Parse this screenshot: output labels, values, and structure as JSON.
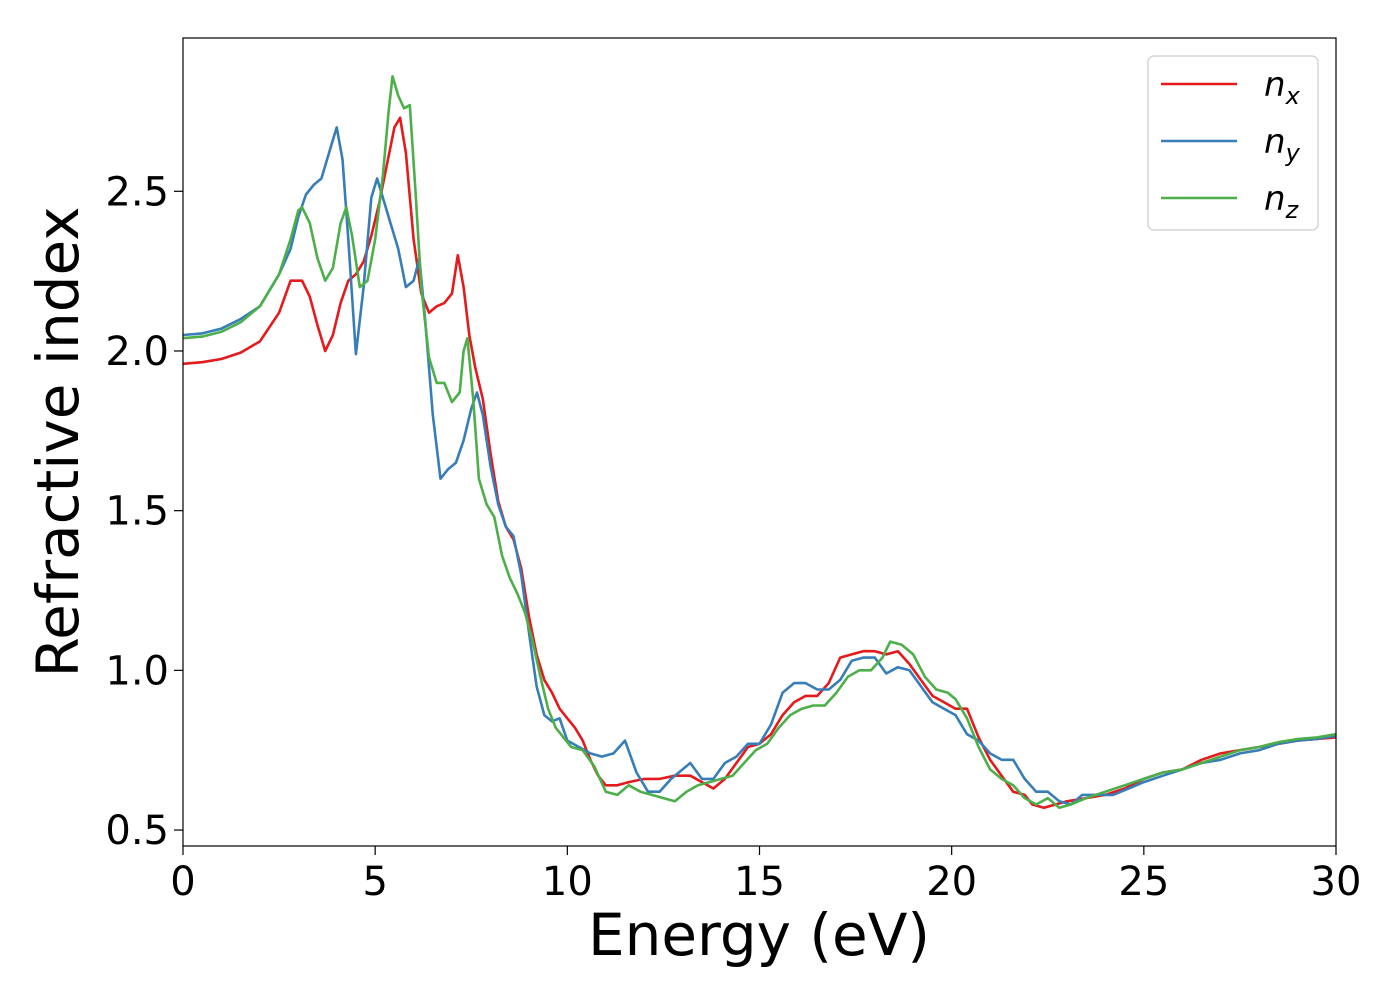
{
  "chart_data": {
    "type": "line",
    "title": "",
    "xlabel": "Energy (eV)",
    "ylabel": "Refractive index",
    "xlim": [
      0,
      30
    ],
    "ylim": [
      0.45,
      2.98
    ],
    "xticks": [
      0,
      5,
      10,
      15,
      20,
      25,
      30
    ],
    "xtick_labels": [
      "0",
      "5",
      "10",
      "15",
      "20",
      "25",
      "30"
    ],
    "yticks": [
      0.5,
      1.0,
      1.5,
      2.0,
      2.5
    ],
    "ytick_labels": [
      "0.5",
      "1.0",
      "1.5",
      "2.0",
      "2.5"
    ],
    "grid": false,
    "legend_position": "top-right",
    "legend": [
      {
        "base": "n",
        "sub": "x",
        "color": "#e41a1c"
      },
      {
        "base": "n",
        "sub": "y",
        "color": "#377eb8"
      },
      {
        "base": "n",
        "sub": "z",
        "color": "#4daf4a"
      }
    ],
    "series": [
      {
        "name": "n_x",
        "color": "#e41a1c",
        "points": [
          [
            0,
            1.96
          ],
          [
            0.5,
            1.965
          ],
          [
            1.0,
            1.975
          ],
          [
            1.5,
            1.995
          ],
          [
            2.0,
            2.03
          ],
          [
            2.5,
            2.12
          ],
          [
            2.8,
            2.22
          ],
          [
            3.1,
            2.22
          ],
          [
            3.3,
            2.17
          ],
          [
            3.5,
            2.08
          ],
          [
            3.7,
            2.0
          ],
          [
            3.9,
            2.05
          ],
          [
            4.1,
            2.15
          ],
          [
            4.3,
            2.22
          ],
          [
            4.5,
            2.24
          ],
          [
            4.7,
            2.28
          ],
          [
            4.9,
            2.36
          ],
          [
            5.1,
            2.46
          ],
          [
            5.3,
            2.58
          ],
          [
            5.5,
            2.7
          ],
          [
            5.65,
            2.73
          ],
          [
            5.8,
            2.62
          ],
          [
            6.0,
            2.35
          ],
          [
            6.2,
            2.18
          ],
          [
            6.4,
            2.12
          ],
          [
            6.6,
            2.14
          ],
          [
            6.8,
            2.15
          ],
          [
            7.0,
            2.18
          ],
          [
            7.15,
            2.3
          ],
          [
            7.3,
            2.2
          ],
          [
            7.45,
            2.05
          ],
          [
            7.6,
            1.95
          ],
          [
            7.8,
            1.85
          ],
          [
            8.0,
            1.68
          ],
          [
            8.2,
            1.53
          ],
          [
            8.4,
            1.45
          ],
          [
            8.6,
            1.41
          ],
          [
            8.8,
            1.32
          ],
          [
            9.0,
            1.17
          ],
          [
            9.2,
            1.05
          ],
          [
            9.4,
            0.97
          ],
          [
            9.6,
            0.93
          ],
          [
            9.8,
            0.88
          ],
          [
            10.0,
            0.85
          ],
          [
            10.2,
            0.82
          ],
          [
            10.4,
            0.78
          ],
          [
            10.6,
            0.72
          ],
          [
            10.8,
            0.67
          ],
          [
            11.0,
            0.64
          ],
          [
            11.3,
            0.64
          ],
          [
            11.6,
            0.65
          ],
          [
            12.0,
            0.66
          ],
          [
            12.4,
            0.66
          ],
          [
            12.8,
            0.67
          ],
          [
            13.2,
            0.67
          ],
          [
            13.5,
            0.65
          ],
          [
            13.8,
            0.63
          ],
          [
            14.1,
            0.66
          ],
          [
            14.4,
            0.71
          ],
          [
            14.7,
            0.76
          ],
          [
            15.0,
            0.77
          ],
          [
            15.3,
            0.8
          ],
          [
            15.6,
            0.86
          ],
          [
            15.9,
            0.9
          ],
          [
            16.2,
            0.92
          ],
          [
            16.5,
            0.92
          ],
          [
            16.8,
            0.96
          ],
          [
            17.1,
            1.04
          ],
          [
            17.4,
            1.05
          ],
          [
            17.7,
            1.06
          ],
          [
            18.0,
            1.06
          ],
          [
            18.3,
            1.05
          ],
          [
            18.6,
            1.06
          ],
          [
            18.9,
            1.02
          ],
          [
            19.2,
            0.97
          ],
          [
            19.5,
            0.92
          ],
          [
            19.8,
            0.9
          ],
          [
            20.1,
            0.88
          ],
          [
            20.4,
            0.88
          ],
          [
            20.7,
            0.79
          ],
          [
            21.0,
            0.72
          ],
          [
            21.3,
            0.67
          ],
          [
            21.6,
            0.62
          ],
          [
            21.9,
            0.61
          ],
          [
            22.1,
            0.58
          ],
          [
            22.4,
            0.57
          ],
          [
            22.7,
            0.58
          ],
          [
            23.0,
            0.59
          ],
          [
            23.5,
            0.6
          ],
          [
            24.0,
            0.61
          ],
          [
            24.5,
            0.63
          ],
          [
            25.0,
            0.66
          ],
          [
            25.5,
            0.68
          ],
          [
            26.0,
            0.69
          ],
          [
            26.5,
            0.72
          ],
          [
            27.0,
            0.74
          ],
          [
            27.5,
            0.75
          ],
          [
            28.0,
            0.76
          ],
          [
            28.5,
            0.77
          ],
          [
            29.0,
            0.78
          ],
          [
            29.5,
            0.785
          ],
          [
            30.0,
            0.79
          ]
        ]
      },
      {
        "name": "n_y",
        "color": "#377eb8",
        "points": [
          [
            0,
            2.05
          ],
          [
            0.5,
            2.055
          ],
          [
            1.0,
            2.07
          ],
          [
            1.5,
            2.1
          ],
          [
            2.0,
            2.14
          ],
          [
            2.5,
            2.24
          ],
          [
            2.8,
            2.32
          ],
          [
            3.0,
            2.42
          ],
          [
            3.2,
            2.49
          ],
          [
            3.4,
            2.52
          ],
          [
            3.6,
            2.54
          ],
          [
            3.8,
            2.62
          ],
          [
            4.0,
            2.7
          ],
          [
            4.15,
            2.6
          ],
          [
            4.3,
            2.35
          ],
          [
            4.5,
            1.99
          ],
          [
            4.7,
            2.2
          ],
          [
            4.9,
            2.48
          ],
          [
            5.05,
            2.54
          ],
          [
            5.2,
            2.48
          ],
          [
            5.4,
            2.4
          ],
          [
            5.6,
            2.32
          ],
          [
            5.8,
            2.2
          ],
          [
            6.0,
            2.22
          ],
          [
            6.15,
            2.29
          ],
          [
            6.3,
            2.1
          ],
          [
            6.5,
            1.8
          ],
          [
            6.7,
            1.6
          ],
          [
            6.9,
            1.63
          ],
          [
            7.1,
            1.65
          ],
          [
            7.3,
            1.72
          ],
          [
            7.5,
            1.82
          ],
          [
            7.65,
            1.87
          ],
          [
            7.8,
            1.8
          ],
          [
            8.0,
            1.64
          ],
          [
            8.2,
            1.52
          ],
          [
            8.4,
            1.45
          ],
          [
            8.6,
            1.42
          ],
          [
            8.8,
            1.3
          ],
          [
            9.0,
            1.12
          ],
          [
            9.2,
            0.95
          ],
          [
            9.4,
            0.86
          ],
          [
            9.6,
            0.84
          ],
          [
            9.8,
            0.85
          ],
          [
            10.0,
            0.78
          ],
          [
            10.3,
            0.76
          ],
          [
            10.6,
            0.74
          ],
          [
            10.9,
            0.73
          ],
          [
            11.2,
            0.74
          ],
          [
            11.5,
            0.78
          ],
          [
            11.8,
            0.68
          ],
          [
            12.1,
            0.62
          ],
          [
            12.4,
            0.62
          ],
          [
            12.7,
            0.66
          ],
          [
            13.0,
            0.69
          ],
          [
            13.2,
            0.71
          ],
          [
            13.5,
            0.66
          ],
          [
            13.8,
            0.66
          ],
          [
            14.1,
            0.71
          ],
          [
            14.4,
            0.73
          ],
          [
            14.7,
            0.77
          ],
          [
            15.0,
            0.77
          ],
          [
            15.3,
            0.83
          ],
          [
            15.6,
            0.93
          ],
          [
            15.9,
            0.96
          ],
          [
            16.2,
            0.96
          ],
          [
            16.5,
            0.94
          ],
          [
            16.8,
            0.94
          ],
          [
            17.1,
            0.97
          ],
          [
            17.4,
            1.03
          ],
          [
            17.7,
            1.04
          ],
          [
            18.0,
            1.04
          ],
          [
            18.3,
            0.99
          ],
          [
            18.6,
            1.01
          ],
          [
            18.9,
            1.0
          ],
          [
            19.2,
            0.95
          ],
          [
            19.5,
            0.9
          ],
          [
            19.8,
            0.88
          ],
          [
            20.1,
            0.86
          ],
          [
            20.4,
            0.8
          ],
          [
            20.7,
            0.78
          ],
          [
            21.0,
            0.74
          ],
          [
            21.3,
            0.72
          ],
          [
            21.6,
            0.72
          ],
          [
            21.9,
            0.66
          ],
          [
            22.2,
            0.62
          ],
          [
            22.5,
            0.62
          ],
          [
            22.8,
            0.59
          ],
          [
            23.1,
            0.58
          ],
          [
            23.4,
            0.61
          ],
          [
            23.8,
            0.61
          ],
          [
            24.2,
            0.61
          ],
          [
            24.6,
            0.63
          ],
          [
            25.0,
            0.65
          ],
          [
            25.5,
            0.67
          ],
          [
            26.0,
            0.69
          ],
          [
            26.5,
            0.71
          ],
          [
            27.0,
            0.72
          ],
          [
            27.5,
            0.74
          ],
          [
            28.0,
            0.75
          ],
          [
            28.5,
            0.77
          ],
          [
            29.0,
            0.78
          ],
          [
            29.5,
            0.785
          ],
          [
            30.0,
            0.795
          ]
        ]
      },
      {
        "name": "n_z",
        "color": "#4daf4a",
        "points": [
          [
            0,
            2.04
          ],
          [
            0.5,
            2.045
          ],
          [
            1.0,
            2.06
          ],
          [
            1.5,
            2.09
          ],
          [
            2.0,
            2.14
          ],
          [
            2.5,
            2.24
          ],
          [
            2.8,
            2.35
          ],
          [
            3.0,
            2.44
          ],
          [
            3.1,
            2.45
          ],
          [
            3.3,
            2.4
          ],
          [
            3.5,
            2.29
          ],
          [
            3.7,
            2.22
          ],
          [
            3.9,
            2.26
          ],
          [
            4.1,
            2.4
          ],
          [
            4.25,
            2.45
          ],
          [
            4.4,
            2.36
          ],
          [
            4.6,
            2.2
          ],
          [
            4.8,
            2.22
          ],
          [
            5.0,
            2.35
          ],
          [
            5.2,
            2.55
          ],
          [
            5.35,
            2.75
          ],
          [
            5.45,
            2.86
          ],
          [
            5.6,
            2.8
          ],
          [
            5.75,
            2.76
          ],
          [
            5.9,
            2.77
          ],
          [
            6.05,
            2.5
          ],
          [
            6.2,
            2.2
          ],
          [
            6.4,
            1.98
          ],
          [
            6.6,
            1.9
          ],
          [
            6.8,
            1.9
          ],
          [
            7.0,
            1.84
          ],
          [
            7.2,
            1.87
          ],
          [
            7.3,
            2.0
          ],
          [
            7.4,
            2.04
          ],
          [
            7.55,
            1.85
          ],
          [
            7.7,
            1.6
          ],
          [
            7.9,
            1.52
          ],
          [
            8.1,
            1.48
          ],
          [
            8.3,
            1.36
          ],
          [
            8.5,
            1.29
          ],
          [
            8.7,
            1.24
          ],
          [
            8.9,
            1.18
          ],
          [
            9.1,
            1.09
          ],
          [
            9.3,
            0.98
          ],
          [
            9.5,
            0.88
          ],
          [
            9.7,
            0.82
          ],
          [
            9.9,
            0.79
          ],
          [
            10.1,
            0.76
          ],
          [
            10.4,
            0.75
          ],
          [
            10.7,
            0.7
          ],
          [
            11.0,
            0.62
          ],
          [
            11.3,
            0.61
          ],
          [
            11.6,
            0.64
          ],
          [
            11.9,
            0.62
          ],
          [
            12.2,
            0.61
          ],
          [
            12.5,
            0.6
          ],
          [
            12.8,
            0.59
          ],
          [
            13.1,
            0.62
          ],
          [
            13.4,
            0.64
          ],
          [
            13.7,
            0.65
          ],
          [
            14.0,
            0.66
          ],
          [
            14.3,
            0.67
          ],
          [
            14.6,
            0.71
          ],
          [
            14.9,
            0.75
          ],
          [
            15.2,
            0.77
          ],
          [
            15.5,
            0.82
          ],
          [
            15.8,
            0.86
          ],
          [
            16.1,
            0.88
          ],
          [
            16.4,
            0.89
          ],
          [
            16.7,
            0.89
          ],
          [
            17.0,
            0.93
          ],
          [
            17.3,
            0.98
          ],
          [
            17.6,
            1.0
          ],
          [
            17.9,
            1.0
          ],
          [
            18.2,
            1.04
          ],
          [
            18.4,
            1.09
          ],
          [
            18.7,
            1.08
          ],
          [
            19.0,
            1.05
          ],
          [
            19.3,
            0.98
          ],
          [
            19.6,
            0.94
          ],
          [
            19.9,
            0.93
          ],
          [
            20.1,
            0.91
          ],
          [
            20.4,
            0.85
          ],
          [
            20.7,
            0.76
          ],
          [
            21.0,
            0.69
          ],
          [
            21.3,
            0.66
          ],
          [
            21.6,
            0.64
          ],
          [
            21.9,
            0.6
          ],
          [
            22.2,
            0.58
          ],
          [
            22.5,
            0.6
          ],
          [
            22.8,
            0.57
          ],
          [
            23.1,
            0.58
          ],
          [
            23.5,
            0.6
          ],
          [
            24.0,
            0.62
          ],
          [
            24.5,
            0.64
          ],
          [
            25.0,
            0.66
          ],
          [
            25.5,
            0.68
          ],
          [
            26.0,
            0.69
          ],
          [
            26.5,
            0.71
          ],
          [
            27.0,
            0.73
          ],
          [
            27.5,
            0.75
          ],
          [
            28.0,
            0.76
          ],
          [
            28.5,
            0.775
          ],
          [
            29.0,
            0.785
          ],
          [
            29.5,
            0.79
          ],
          [
            30.0,
            0.8
          ]
        ]
      }
    ]
  }
}
